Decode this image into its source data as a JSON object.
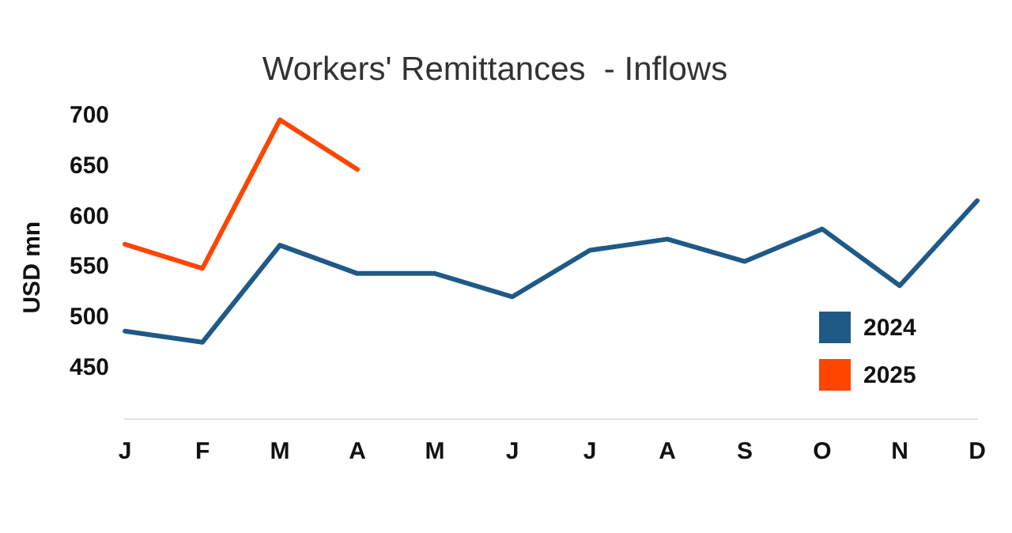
{
  "chart_data": {
    "type": "line",
    "title": "Workers' Remittances  - Inflows",
    "ylabel": "USD mn",
    "categories": [
      "J",
      "F",
      "M",
      "A",
      "M",
      "J",
      "J",
      "A",
      "S",
      "O",
      "N",
      "D"
    ],
    "series": [
      {
        "name": "2024",
        "color": "#1f5a87",
        "values": [
          487,
          476,
          572,
          544,
          544,
          521,
          567,
          578,
          556,
          588,
          532,
          616
        ]
      },
      {
        "name": "2025",
        "color": "#ff4500",
        "values": [
          573,
          549,
          696,
          647,
          null,
          null,
          null,
          null,
          null,
          null,
          null,
          null
        ]
      }
    ],
    "ylim": [
      400,
      700
    ],
    "yticks": [
      450,
      500,
      550,
      600,
      650,
      700
    ],
    "grid": false,
    "legend": "bottom right",
    "marker": "none",
    "line_style": "solid"
  }
}
